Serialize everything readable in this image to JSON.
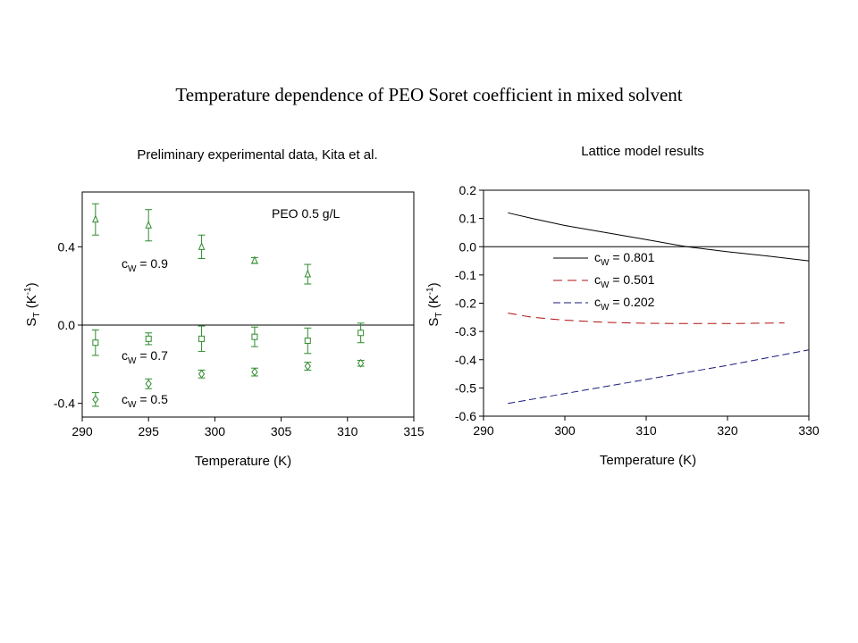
{
  "page": {
    "title": "Temperature dependence of PEO Soret coefficient in mixed solvent"
  },
  "chart_data": [
    {
      "type": "scatter",
      "title": "Preliminary experimental data, Kita et al.",
      "xlabel": "Temperature (K)",
      "ylabel": {
        "base": "S",
        "sub": "T",
        "unit_open": " (K",
        "sup": "-1",
        "unit_close": ")"
      },
      "xlim": [
        290,
        315
      ],
      "ylim": [
        -0.47,
        0.68
      ],
      "xticks": [
        290,
        295,
        300,
        305,
        310,
        315
      ],
      "xtick_labels": [
        "290",
        "295",
        "300",
        "305",
        "310",
        "315"
      ],
      "yticks": [
        -0.4,
        0.0,
        0.4
      ],
      "ytick_labels": [
        "-0.4",
        "0.0",
        "0.4"
      ],
      "zero_line": true,
      "annotation": "PEO 0.5 g/L",
      "marker_color": "#2e8b2e",
      "series": [
        {
          "label_base": "c",
          "label_sub": "W",
          "label_value": " = 0.9",
          "marker": "triangle",
          "points": [
            {
              "x": 291,
              "y": 0.54,
              "err": 0.08
            },
            {
              "x": 295,
              "y": 0.51,
              "err": 0.08
            },
            {
              "x": 299,
              "y": 0.4,
              "err": 0.06
            },
            {
              "x": 303,
              "y": 0.33,
              "err": 0.015
            },
            {
              "x": 307,
              "y": 0.26,
              "err": 0.05
            }
          ]
        },
        {
          "label_base": "c",
          "label_sub": "W",
          "label_value": " = 0.7",
          "marker": "square",
          "points": [
            {
              "x": 291,
              "y": -0.09,
              "err": 0.065
            },
            {
              "x": 295,
              "y": -0.07,
              "err": 0.03
            },
            {
              "x": 299,
              "y": -0.07,
              "err": 0.065
            },
            {
              "x": 303,
              "y": -0.06,
              "err": 0.05
            },
            {
              "x": 307,
              "y": -0.08,
              "err": 0.065
            },
            {
              "x": 311,
              "y": -0.04,
              "err": 0.05
            }
          ]
        },
        {
          "label_base": "c",
          "label_sub": "W",
          "label_value": " = 0.5",
          "marker": "diamond",
          "points": [
            {
              "x": 291,
              "y": -0.38,
              "err": 0.035
            },
            {
              "x": 295,
              "y": -0.3,
              "err": 0.025
            },
            {
              "x": 299,
              "y": -0.25,
              "err": 0.02
            },
            {
              "x": 303,
              "y": -0.24,
              "err": 0.02
            },
            {
              "x": 307,
              "y": -0.21,
              "err": 0.02
            },
            {
              "x": 311,
              "y": -0.195,
              "err": 0.015
            }
          ]
        }
      ]
    },
    {
      "type": "line",
      "title": "Lattice model results",
      "xlabel": "Temperature (K)",
      "ylabel": {
        "base": "S",
        "sub": "T",
        "unit_open": " (K",
        "sup": "-1",
        "unit_close": ")"
      },
      "xlim": [
        290,
        330
      ],
      "ylim": [
        -0.6,
        0.2
      ],
      "xticks": [
        290,
        300,
        310,
        320,
        330
      ],
      "xtick_labels": [
        "290",
        "300",
        "310",
        "320",
        "330"
      ],
      "yticks": [
        0.2,
        0.1,
        0.0,
        -0.1,
        -0.2,
        -0.3,
        -0.4,
        -0.5,
        -0.6
      ],
      "ytick_labels": [
        "0.2",
        "0.1",
        "0.0",
        "-0.1",
        "-0.2",
        "-0.3",
        "-0.4",
        "-0.5",
        "-0.6"
      ],
      "zero_line": true,
      "legend": "inside-left",
      "series": [
        {
          "label_base": "c",
          "label_sub": "W",
          "label_value": " = 0.801",
          "color": "#000000",
          "dash": "solid",
          "x": [
            293,
            296,
            300,
            305,
            310,
            315,
            320,
            325,
            330
          ],
          "y": [
            0.12,
            0.1,
            0.075,
            0.05,
            0.025,
            0.0,
            -0.018,
            -0.033,
            -0.05
          ]
        },
        {
          "label_base": "c",
          "label_sub": "W",
          "label_value": " = 0.501",
          "color": "#b01010",
          "dash": "dash",
          "x": [
            293,
            296,
            300,
            305,
            310,
            315,
            320,
            323,
            327
          ],
          "y": [
            -0.235,
            -0.25,
            -0.26,
            -0.268,
            -0.271,
            -0.272,
            -0.272,
            -0.271,
            -0.27
          ]
        },
        {
          "label_base": "c",
          "label_sub": "W",
          "label_value": " = 0.202",
          "color": "#1a1a7a",
          "dash": "dash",
          "x": [
            293,
            300,
            310,
            320,
            330
          ],
          "y": [
            -0.555,
            -0.52,
            -0.47,
            -0.42,
            -0.365
          ]
        }
      ]
    }
  ]
}
